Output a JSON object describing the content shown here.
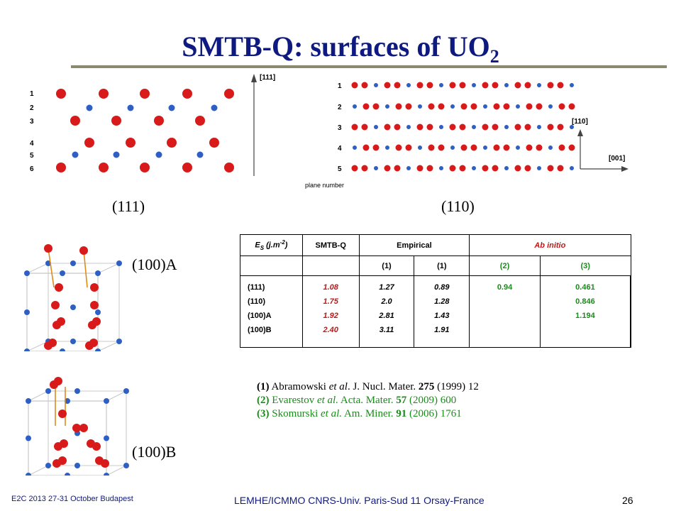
{
  "title": "SMTB-Q: surfaces of UO",
  "title_sub": "2",
  "figures": {
    "f111": {
      "caption": "(111)",
      "axis_label": "[111]",
      "plane_labels": [
        "1",
        "2",
        "3",
        "4",
        "5",
        "6"
      ]
    },
    "f110": {
      "caption": "(110)",
      "axis_x_label": "[001]",
      "axis_y_label": "[110]",
      "plane_labels": [
        "1",
        "2",
        "3",
        "4",
        "5"
      ],
      "plane_number_label": "plane number"
    },
    "f100A": {
      "caption": "(100)A"
    },
    "f100B": {
      "caption": "(100)B"
    },
    "atom_colors": {
      "oxygen": "#d81a1a",
      "uranium": "#2e5fc4",
      "bond": "#e08a1a",
      "cell": "#c8c8c8"
    }
  },
  "table": {
    "header_es": "E",
    "header_es_sub": "S",
    "header_es_unit": " (j.m",
    "header_es_exp": "-2",
    "header_es_close": ")",
    "header_smtbq": "SMTB-Q",
    "header_empirical": "Empirical",
    "header_abinitio": "Ab initio",
    "ref_row": [
      "(1)",
      "(1)",
      "(2)",
      "(3)"
    ],
    "surfaces": [
      "(111)",
      "(110)",
      "(100)A",
      "(100)B"
    ],
    "smtbq": [
      "1.08",
      "1.75",
      "1.92",
      "2.40"
    ],
    "empirical_1a": [
      "1.27",
      "2.0",
      "2.81",
      "3.11"
    ],
    "empirical_1b": [
      "0.89",
      "1.28",
      "1.43",
      "1.91"
    ],
    "abinitio_2": [
      "0.94"
    ],
    "abinitio_3": [
      "0.461",
      "0.846",
      "1.194"
    ]
  },
  "references": [
    {
      "num": "(1)",
      "authors": "Abramowski",
      "etal": "et al",
      "journal": ". J. Nucl. Mater. ",
      "vol": "275",
      "rest": " (1999) 12"
    },
    {
      "num": "(2)",
      "authors": "Evarestov",
      "etal": "et al.",
      "journal": " Acta. Mater. ",
      "vol": "57",
      "rest": " (2009) 600"
    },
    {
      "num": "(3)",
      "authors": "Skomurski",
      "etal": "et al.",
      "journal": " Am. Miner. ",
      "vol": "91",
      "rest": " (2006) 1761"
    }
  ],
  "footer": {
    "left": "E2C 2013 27-31 October Budapest",
    "center": "LEMHE/ICMMO CNRS-Univ. Paris-Sud 11 Orsay-France",
    "page": "26"
  }
}
